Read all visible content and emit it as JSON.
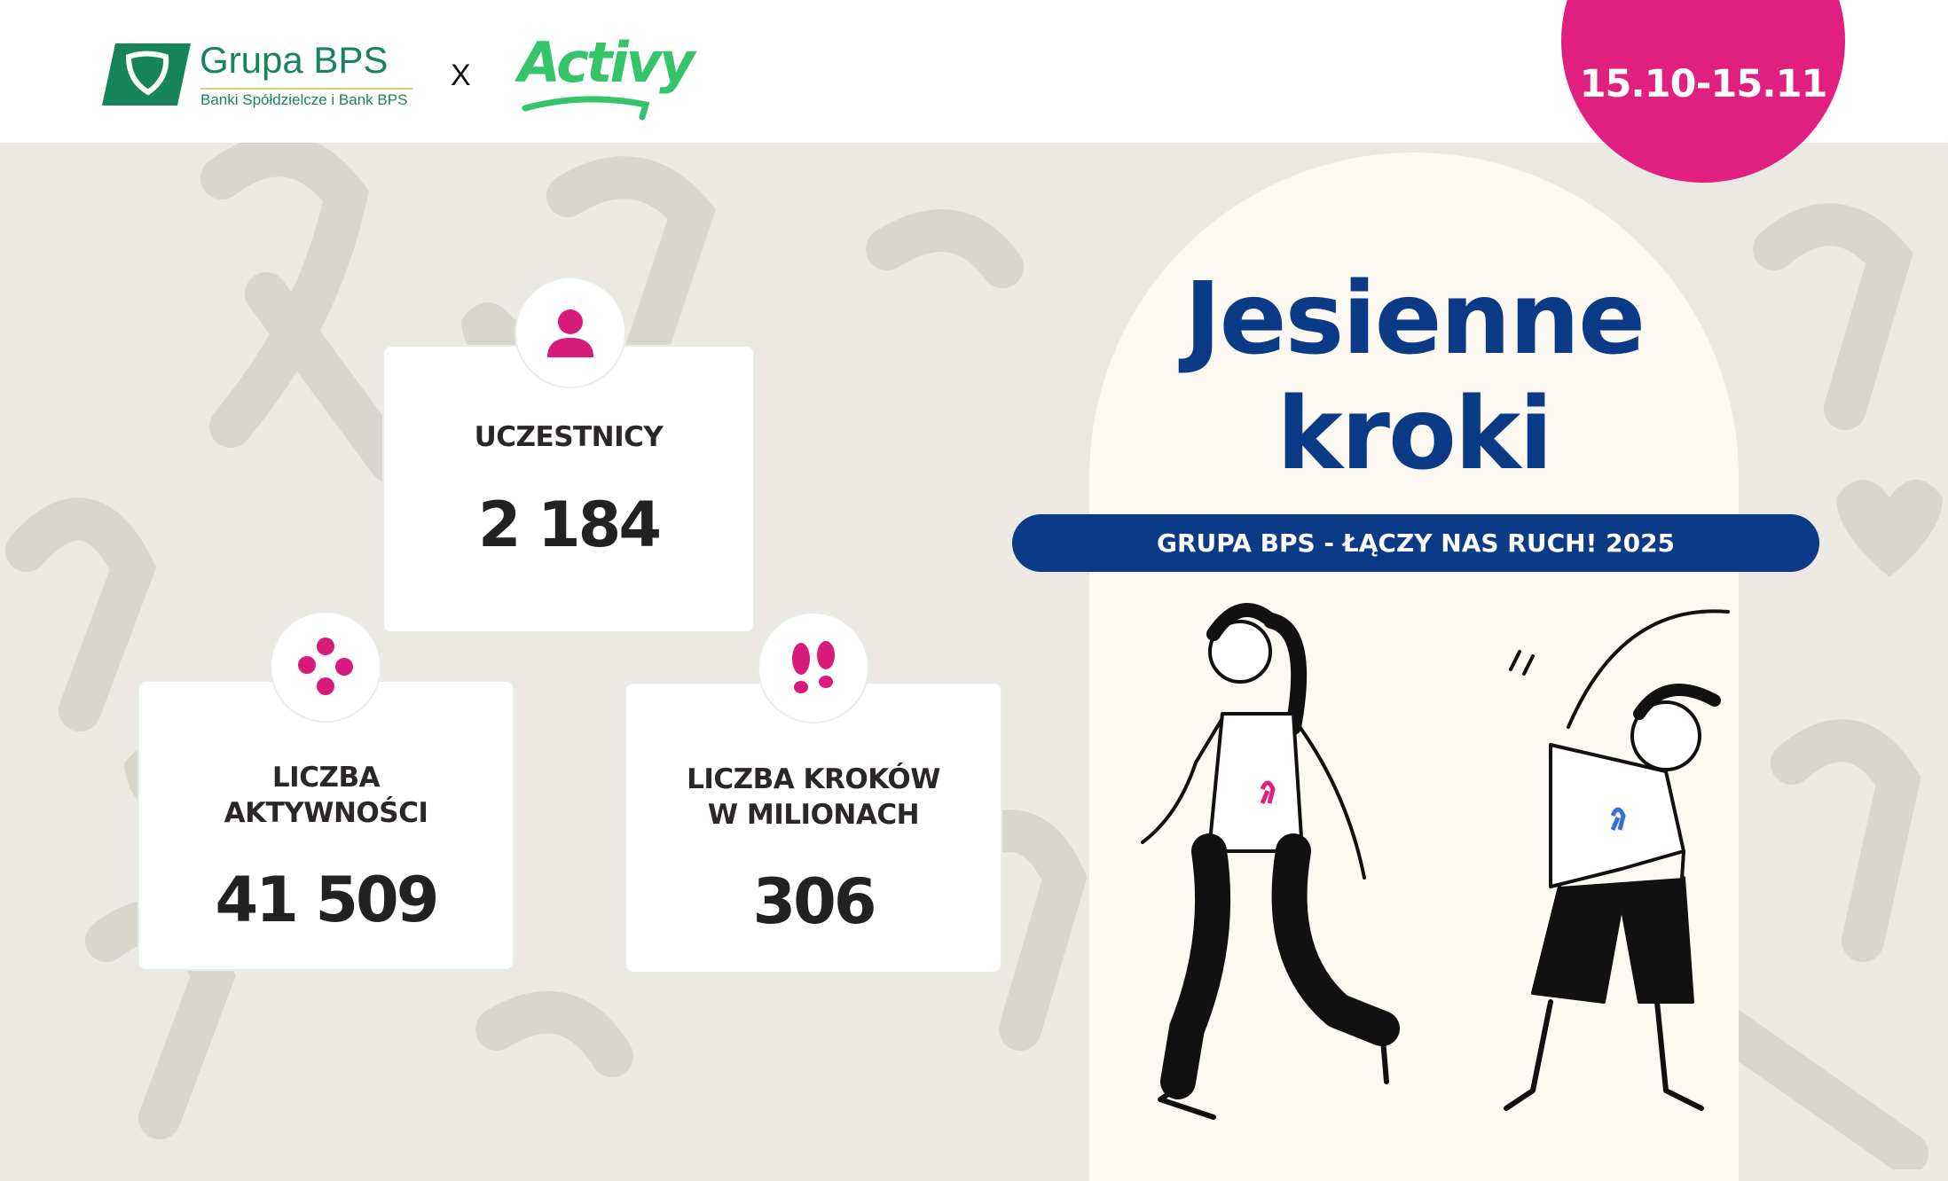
{
  "header": {
    "bps_logo": {
      "name": "Grupa BPS",
      "subtitle": "Banki Spółdzielcze i Bank BPS",
      "color": "#16855c"
    },
    "separator": "X",
    "partner_logo": {
      "name": "Activy",
      "color": "#35c46a"
    },
    "date_range": "15.10-15.11",
    "date_badge_color": "#e01f7e"
  },
  "stats": [
    {
      "label": "UCZESTNICY",
      "value": "2 184",
      "icon": "person-icon"
    },
    {
      "label_line1": "LICZBA",
      "label_line2": "AKTYWNOŚCI",
      "value": "41 509",
      "icon": "dots-icon"
    },
    {
      "label_line1": "LICZBA KROKÓW",
      "label_line2": "W MILIONACH",
      "value": "306",
      "icon": "footprints-icon"
    }
  ],
  "hero": {
    "title_line1": "Jesienne",
    "title_line2": "kroki",
    "banner": "GRUPA BPS - ŁĄCZY NAS RUCH! 2025",
    "title_color": "#0b3b86",
    "accent_color": "#e01f7e"
  }
}
